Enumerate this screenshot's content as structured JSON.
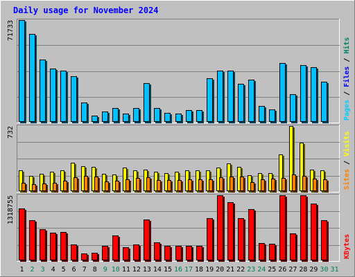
{
  "chart_data": {
    "type": "bar",
    "title": "Daily usage for November 2024",
    "categories": [
      "1",
      "2",
      "3",
      "4",
      "5",
      "6",
      "7",
      "8",
      "9",
      "10",
      "11",
      "12",
      "13",
      "14",
      "15",
      "16",
      "17",
      "18",
      "19",
      "20",
      "21",
      "22",
      "23",
      "24",
      "25",
      "26",
      "27",
      "28",
      "29",
      "30",
      "31"
    ],
    "weekend_days": [
      "2",
      "3",
      "9",
      "10",
      "16",
      "17",
      "23",
      "24",
      "30",
      "31"
    ],
    "panels": [
      {
        "id": "pages-files-hits",
        "ymax_label": "71733",
        "ymax": 71733,
        "right_label": [
          {
            "text": "Pages",
            "color": "#00ccff"
          },
          {
            "text": " / ",
            "color": "#000000"
          },
          {
            "text": "Files",
            "color": "#0000ff"
          },
          {
            "text": " / ",
            "color": "#000000"
          },
          {
            "text": "Hits",
            "color": "#008060"
          }
        ],
        "series": [
          {
            "name": "Hits",
            "color": "#00c0ff",
            "values": [
              71733,
              61900,
              44100,
              37600,
              36300,
              32200,
              13700,
              4400,
              7100,
              10000,
              5900,
              9800,
              27200,
              10000,
              6500,
              6000,
              8500,
              8300,
              30800,
              36300,
              36100,
              26600,
              29800,
              11000,
              9000,
              41700,
              19600,
              40000,
              38700,
              28100,
              0
            ]
          }
        ]
      },
      {
        "id": "visits-sites",
        "ymax_label": "732",
        "ymax": 732,
        "right_label": [
          {
            "text": "Sites",
            "color": "#ff8000"
          },
          {
            "text": " / ",
            "color": "#000000"
          },
          {
            "text": "Visits",
            "color": "#ffff00"
          }
        ],
        "series": [
          {
            "name": "Visits",
            "color": "#ffff00",
            "values": [
              235,
              170,
              195,
              215,
              235,
              320,
              280,
              275,
              195,
              190,
              265,
              235,
              240,
              215,
              205,
              215,
              230,
              230,
              230,
              265,
              315,
              270,
              180,
              205,
              205,
              410,
              732,
              545,
              240,
              230,
              0
            ]
          },
          {
            "name": "Sites",
            "color": "#ff8000",
            "values": [
              95,
              80,
              85,
              95,
              120,
              155,
              170,
              165,
              110,
              115,
              135,
              150,
              155,
              125,
              125,
              125,
              130,
              130,
              130,
              155,
              165,
              160,
              105,
              130,
              140,
              150,
              185,
              170,
              140,
              130,
              0
            ]
          }
        ]
      },
      {
        "id": "kbytes",
        "ymax_label": "1318755",
        "ymax": 1318755,
        "right_label": [
          {
            "text": "KBytes",
            "color": "#ff0000"
          }
        ],
        "series": [
          {
            "name": "KBytes",
            "color": "#ff0000",
            "values": [
              1050000,
              810000,
              625000,
              560000,
              570000,
              320000,
              140000,
              150000,
              300000,
              500000,
              260000,
              320000,
              825000,
              370000,
              300000,
              290000,
              300000,
              300000,
              860000,
              1318755,
              1175000,
              850000,
              1045000,
              350000,
              335000,
              1318755,
              550000,
              1318755,
              1145000,
              810000,
              0
            ]
          }
        ]
      }
    ]
  }
}
